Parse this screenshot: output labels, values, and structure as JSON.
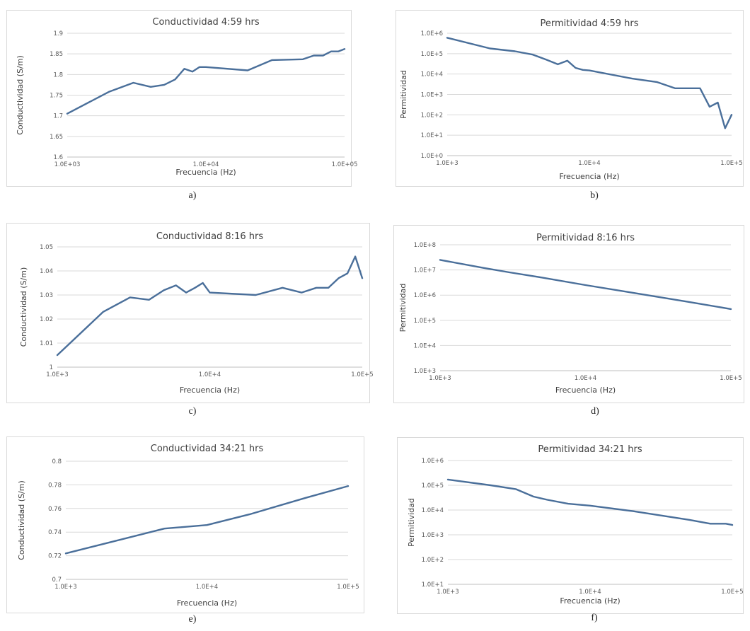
{
  "colors": {
    "series": "#4a6f9a",
    "grid": "#d9d9d9",
    "frame": "#d9d9d9",
    "text": "#404040"
  },
  "chart_data": [
    {
      "type": "line",
      "panel_label": "a)",
      "title": "Conductividad 4:59 hrs",
      "xlabel": "Frecuencia (Hz)",
      "ylabel": "Conductividad (S/m)",
      "x_scale": "log",
      "y_scale": "linear",
      "xlim": [
        1000,
        100000
      ],
      "ylim": [
        1.6,
        1.9
      ],
      "xticks": [
        1000,
        10000,
        100000
      ],
      "xtick_labels": [
        "1.0E+03",
        "1.0E+04",
        "1.0E+05"
      ],
      "yticks": [
        1.6,
        1.65,
        1.7,
        1.75,
        1.8,
        1.85,
        1.9
      ],
      "ytick_labels": [
        "1.6",
        "1.65",
        "1.7",
        "1.75",
        "1.8",
        "1.85",
        "1.9"
      ],
      "grid": true,
      "series": [
        {
          "x": [
            1000,
            2000,
            3000,
            4000,
            5000,
            6000,
            7000,
            8000,
            9000,
            10000,
            20000,
            30000,
            50000,
            60000,
            70000,
            80000,
            90000,
            100000
          ],
          "y": [
            1.705,
            1.758,
            1.78,
            1.77,
            1.775,
            1.788,
            1.814,
            1.807,
            1.818,
            1.818,
            1.81,
            1.835,
            1.837,
            1.846,
            1.846,
            1.856,
            1.856,
            1.862
          ]
        }
      ]
    },
    {
      "type": "line",
      "panel_label": "b)",
      "title": "Permitividad 4:59 hrs",
      "xlabel": "Frecuencia (Hz)",
      "ylabel": "Permitividad",
      "x_scale": "log",
      "y_scale": "log",
      "xlim": [
        1000,
        100000
      ],
      "ylim": [
        1,
        1000000
      ],
      "xticks": [
        1000,
        10000,
        100000
      ],
      "xtick_labels": [
        "1.0E+3",
        "1.0E+4",
        "1.0E+5"
      ],
      "yticks": [
        1,
        10,
        100,
        1000,
        10000,
        100000,
        1000000
      ],
      "ytick_labels": [
        "1.0E+0",
        "1.0E+1",
        "1.0E+2",
        "1.0E+3",
        "1.0E+4",
        "1.0E+5",
        "1.0E+6"
      ],
      "grid": true,
      "series": [
        {
          "x": [
            1000,
            2000,
            3000,
            4000,
            5000,
            6000,
            7000,
            8000,
            9000,
            10000,
            20000,
            30000,
            40000,
            50000,
            60000,
            70000,
            80000,
            90000,
            100000
          ],
          "y": [
            600000,
            180000,
            130000,
            90000,
            50000,
            30000,
            45000,
            20000,
            16000,
            15000,
            6000,
            4000,
            2000,
            2000,
            2000,
            250,
            400,
            22,
            100
          ]
        }
      ]
    },
    {
      "type": "line",
      "panel_label": "c)",
      "title": "Conductividad 8:16 hrs",
      "xlabel": "Frecuencia (Hz)",
      "ylabel": "Conductividad (S/m)",
      "x_scale": "log",
      "y_scale": "linear",
      "xlim": [
        1000,
        100000
      ],
      "ylim": [
        1.0,
        1.05
      ],
      "xticks": [
        1000,
        10000,
        100000
      ],
      "xtick_labels": [
        "1.0E+3",
        "1.0E+4",
        "1.0E+5"
      ],
      "yticks": [
        1.0,
        1.01,
        1.02,
        1.03,
        1.04,
        1.05
      ],
      "ytick_labels": [
        "1",
        "1.01",
        "1.02",
        "1.03",
        "1.04",
        "1.05"
      ],
      "grid": true,
      "series": [
        {
          "x": [
            1000,
            2000,
            3000,
            4000,
            5000,
            6000,
            7000,
            8000,
            9000,
            10000,
            20000,
            30000,
            40000,
            50000,
            60000,
            70000,
            80000,
            90000,
            100000
          ],
          "y": [
            1.005,
            1.023,
            1.029,
            1.028,
            1.032,
            1.034,
            1.031,
            1.033,
            1.035,
            1.031,
            1.03,
            1.033,
            1.031,
            1.033,
            1.033,
            1.037,
            1.039,
            1.046,
            1.037
          ]
        }
      ]
    },
    {
      "type": "line",
      "panel_label": "d)",
      "title": "Permitividad 8:16 hrs",
      "xlabel": "Frecuencia (Hz)",
      "ylabel": "Permitividad",
      "x_scale": "log",
      "y_scale": "log",
      "xlim": [
        1000,
        100000
      ],
      "ylim": [
        1000,
        100000000
      ],
      "xticks": [
        1000,
        10000,
        100000
      ],
      "xtick_labels": [
        "1.0E+3",
        "1.0E+4",
        "1.0E+5"
      ],
      "yticks": [
        1000,
        10000,
        100000,
        1000000,
        10000000,
        100000000
      ],
      "ytick_labels": [
        "1.0E+3",
        "1.0E+4",
        "1.0E+5",
        "1.0E+6",
        "1.0E+7",
        "1.0E+8"
      ],
      "grid": true,
      "series": [
        {
          "x": [
            1000,
            2000,
            3000,
            5000,
            10000,
            20000,
            50000,
            100000
          ],
          "y": [
            25000000,
            12000000,
            8000000,
            5000000,
            2500000,
            1300000,
            550000,
            280000
          ]
        }
      ]
    },
    {
      "type": "line",
      "panel_label": "e)",
      "title": "Conductividad 34:21 hrs",
      "xlabel": "Frecuencia (Hz)",
      "ylabel": "Conductividad (S/m)",
      "x_scale": "log",
      "y_scale": "linear",
      "xlim": [
        1000,
        100000
      ],
      "ylim": [
        0.7,
        0.8
      ],
      "xticks": [
        1000,
        10000,
        100000
      ],
      "xtick_labels": [
        "1.0E+3",
        "1.0E+4",
        "1.0E+5"
      ],
      "yticks": [
        0.7,
        0.72,
        0.74,
        0.76,
        0.78,
        0.8
      ],
      "ytick_labels": [
        "0.7",
        "0.72",
        "0.74",
        "0.76",
        "0.78",
        "0.8"
      ],
      "grid": true,
      "series": [
        {
          "x": [
            1000,
            2000,
            5000,
            10000,
            20000,
            50000,
            100000
          ],
          "y": [
            0.722,
            0.731,
            0.743,
            0.746,
            0.755,
            0.769,
            0.779
          ]
        }
      ]
    },
    {
      "type": "line",
      "panel_label": "f)",
      "title": "Permitividad 34:21 hrs",
      "xlabel": "Frecuencia (Hz)",
      "ylabel": "Permitividad",
      "x_scale": "log",
      "y_scale": "log",
      "xlim": [
        1000,
        100000
      ],
      "ylim": [
        10,
        1000000
      ],
      "xticks": [
        1000,
        10000,
        100000
      ],
      "xtick_labels": [
        "1.0E+3",
        "1.0E+4",
        "1.0E+5"
      ],
      "yticks": [
        10,
        100,
        1000,
        10000,
        100000,
        1000000
      ],
      "ytick_labels": [
        "1.0E+1",
        "1.0E+2",
        "1.0E+3",
        "1.0E+4",
        "1.0E+5",
        "1.0E+6"
      ],
      "grid": true,
      "series": [
        {
          "x": [
            1000,
            2000,
            3000,
            4000,
            5000,
            7000,
            10000,
            20000,
            50000,
            70000,
            90000,
            100000
          ],
          "y": [
            170000,
            100000,
            70000,
            35000,
            26000,
            18000,
            15000,
            9000,
            4000,
            2800,
            2800,
            2500
          ]
        }
      ]
    }
  ]
}
